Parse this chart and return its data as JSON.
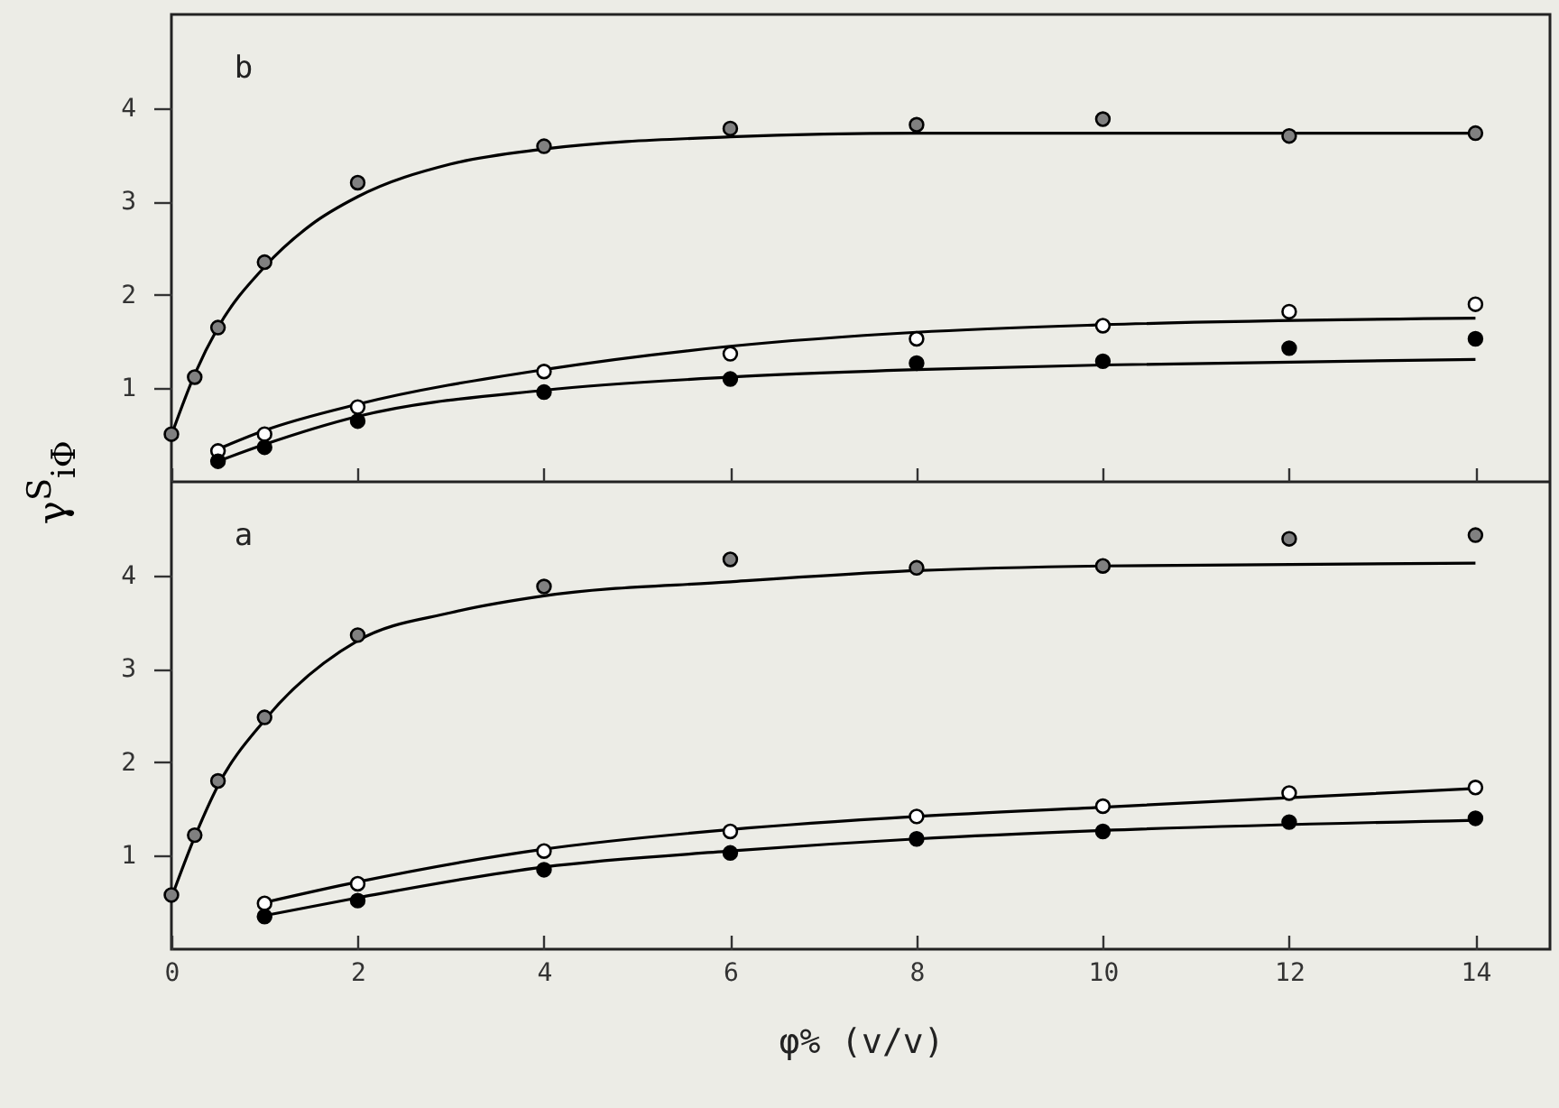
{
  "chart_data": [
    {
      "type": "scatter",
      "ylabel": "γ$^{S}$$_{iΦ}$",
      "annotations": [
        "b"
      ],
      "xlim": [
        0,
        14.8
      ],
      "ylim": [
        0,
        5
      ],
      "xticks": [
        0,
        2,
        4,
        6,
        8,
        10,
        12,
        14
      ],
      "yticks": [
        1,
        2,
        3,
        4
      ],
      "tick_labels": "y",
      "grid": false,
      "marker": "circle",
      "series": [
        {
          "color": "#808080",
          "x": [
            0,
            0.25,
            0.5,
            1,
            2,
            4,
            6,
            8,
            10,
            12,
            14
          ],
          "values": [
            0.51,
            1.12,
            1.65,
            2.35,
            3.2,
            3.59,
            3.78,
            3.82,
            3.88,
            3.7,
            3.73
          ]
        },
        {
          "color": "#ffffff",
          "x": [
            0.5,
            1,
            2,
            4,
            6,
            8,
            10,
            12,
            14
          ],
          "values": [
            0.33,
            0.51,
            0.8,
            1.18,
            1.37,
            1.53,
            1.67,
            1.82,
            1.9
          ]
        },
        {
          "color": "#000000",
          "x": [
            0.5,
            1,
            2,
            4,
            6,
            8,
            10,
            12,
            14
          ],
          "values": [
            0.22,
            0.37,
            0.65,
            0.96,
            1.1,
            1.27,
            1.29,
            1.43,
            1.53
          ]
        },
        {
          "type": "line",
          "color": "#000000",
          "marker": "none",
          "x": [
            0,
            0.25,
            0.5,
            1,
            1.5,
            2,
            3,
            4,
            6,
            8,
            10,
            14
          ],
          "values": [
            0.5,
            1.15,
            1.65,
            2.3,
            2.75,
            3.05,
            3.4,
            3.56,
            3.69,
            3.73,
            3.73,
            3.73
          ]
        },
        {
          "type": "line",
          "color": "#000000",
          "marker": "none",
          "x": [
            0.5,
            1,
            2,
            4,
            6,
            8,
            10,
            14
          ],
          "values": [
            0.35,
            0.55,
            0.83,
            1.2,
            1.45,
            1.6,
            1.68,
            1.75
          ]
        },
        {
          "type": "line",
          "color": "#000000",
          "marker": "none",
          "x": [
            0.5,
            1,
            2,
            4,
            6,
            8,
            10,
            14
          ],
          "values": [
            0.22,
            0.4,
            0.7,
            0.98,
            1.12,
            1.2,
            1.25,
            1.31
          ]
        }
      ]
    },
    {
      "type": "scatter",
      "xlabel": "φ% (v/v)",
      "annotations": [
        "a"
      ],
      "xlim": [
        0,
        14.8
      ],
      "ylim": [
        0,
        5
      ],
      "xticks": [
        0,
        2,
        4,
        6,
        8,
        10,
        12,
        14
      ],
      "yticks": [
        1,
        2,
        3,
        4
      ],
      "grid": false,
      "marker": "circle",
      "series": [
        {
          "color": "#808080",
          "x": [
            0,
            0.25,
            0.5,
            1,
            2,
            4,
            6,
            8,
            10,
            12,
            14
          ],
          "values": [
            0.58,
            1.22,
            1.8,
            2.48,
            3.36,
            3.88,
            4.17,
            4.08,
            4.1,
            4.39,
            4.43
          ]
        },
        {
          "color": "#ffffff",
          "x": [
            1,
            2,
            4,
            6,
            8,
            10,
            12,
            14
          ],
          "values": [
            0.49,
            0.7,
            1.05,
            1.26,
            1.42,
            1.53,
            1.67,
            1.73
          ]
        },
        {
          "color": "#000000",
          "x": [
            1,
            2,
            4,
            6,
            8,
            10,
            12,
            14
          ],
          "values": [
            0.35,
            0.52,
            0.85,
            1.03,
            1.18,
            1.26,
            1.36,
            1.4
          ]
        },
        {
          "type": "line",
          "color": "#000000",
          "marker": "none",
          "x": [
            0,
            0.25,
            0.5,
            1,
            2,
            3,
            4,
            6,
            8,
            10,
            14
          ],
          "values": [
            0.55,
            1.2,
            1.75,
            2.45,
            3.3,
            3.6,
            3.78,
            3.93,
            4.05,
            4.1,
            4.13
          ]
        },
        {
          "type": "line",
          "color": "#000000",
          "marker": "none",
          "x": [
            1,
            2,
            4,
            6,
            8,
            10,
            14
          ],
          "values": [
            0.5,
            0.72,
            1.07,
            1.28,
            1.42,
            1.52,
            1.72
          ]
        },
        {
          "type": "line",
          "color": "#000000",
          "marker": "none",
          "x": [
            1,
            2,
            4,
            6,
            8,
            10,
            14
          ],
          "values": [
            0.36,
            0.55,
            0.88,
            1.05,
            1.18,
            1.27,
            1.38
          ]
        }
      ]
    }
  ]
}
